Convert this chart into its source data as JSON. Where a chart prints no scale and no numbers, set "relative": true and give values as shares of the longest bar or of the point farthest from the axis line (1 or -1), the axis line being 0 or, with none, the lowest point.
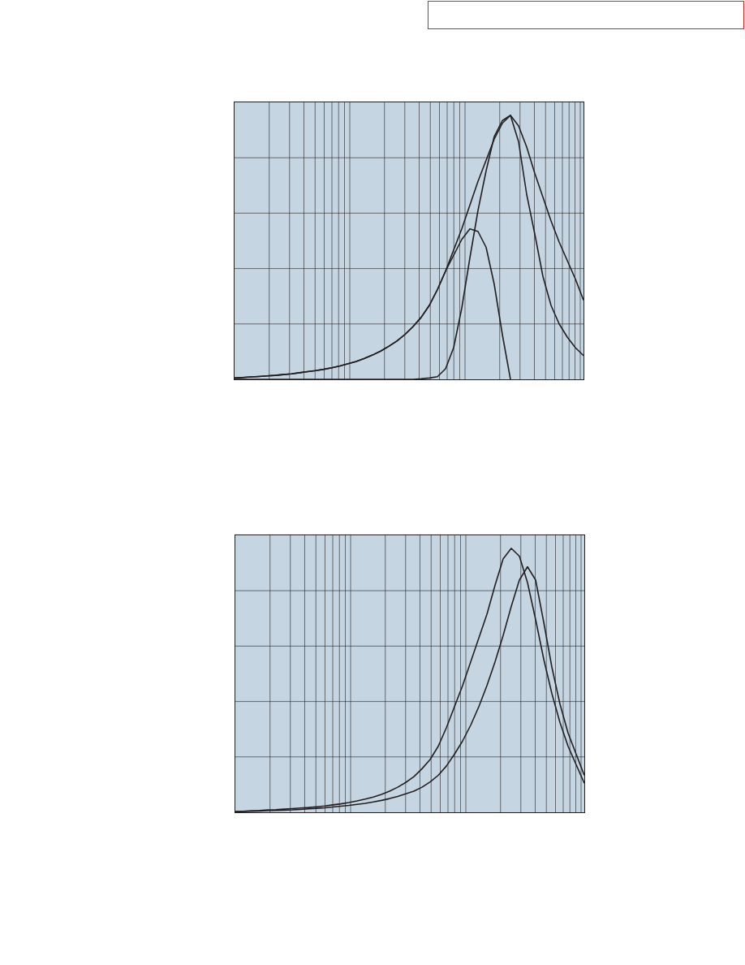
{
  "chart_data": [
    {
      "type": "line",
      "relative": true,
      "grid": true,
      "line_style": "solid",
      "marker": "none",
      "categories": [
        null,
        null,
        null,
        null,
        null,
        null,
        null,
        null,
        null,
        null,
        null,
        null,
        null,
        null,
        null,
        null,
        null,
        null,
        null,
        null,
        null,
        null,
        null,
        null,
        null,
        null,
        null,
        null,
        null,
        null,
        null,
        null,
        null,
        null,
        null,
        null,
        null,
        null,
        null,
        null,
        null,
        null,
        null,
        null
      ],
      "series": [
        {
          "color": "#231f20",
          "values": [
            0.005,
            0.007,
            0.009,
            0.011,
            0.013,
            0.015,
            0.018,
            0.021,
            0.025,
            0.029,
            0.033,
            0.038,
            0.044,
            0.051,
            0.059,
            0.068,
            0.079,
            0.092,
            0.107,
            0.125,
            0.145,
            0.17,
            0.2,
            0.235,
            0.28,
            0.34,
            0.41,
            0.49,
            0.57,
            0.66,
            0.75,
            0.83,
            0.91,
            0.97,
            1.0,
            0.96,
            0.88,
            0.78,
            0.69,
            0.6,
            0.52,
            0.45,
            0.38,
            0.3
          ]
        },
        {
          "color": "#231f20",
          "values": [
            0,
            0,
            0,
            0,
            0,
            0,
            0,
            0,
            0,
            0,
            0,
            0,
            0,
            0,
            0,
            0,
            0,
            0,
            0,
            0,
            0,
            0,
            0,
            0.002,
            0.005,
            0.01,
            0.04,
            0.12,
            0.27,
            0.46,
            0.64,
            0.79,
            0.92,
            0.98,
            1.0,
            0.9,
            0.7,
            0.55,
            0.39,
            0.28,
            0.21,
            0.16,
            0.12,
            0.09
          ]
        },
        {
          "color": "#231f20",
          "values": [
            0.005,
            0.007,
            0.009,
            0.011,
            0.013,
            0.015,
            0.018,
            0.021,
            0.025,
            0.029,
            0.033,
            0.038,
            0.044,
            0.051,
            0.059,
            0.068,
            0.079,
            0.092,
            0.107,
            0.125,
            0.145,
            0.17,
            0.2,
            0.235,
            0.28,
            0.34,
            0.41,
            0.47,
            0.53,
            0.57,
            0.56,
            0.5,
            0.36,
            0.17,
            0,
            null,
            null,
            null,
            null,
            null,
            null,
            null,
            null,
            null
          ]
        }
      ]
    },
    {
      "type": "line",
      "relative": true,
      "grid": true,
      "line_style": "solid",
      "marker": "none",
      "categories": [
        null,
        null,
        null,
        null,
        null,
        null,
        null,
        null,
        null,
        null,
        null,
        null,
        null,
        null,
        null,
        null,
        null,
        null,
        null,
        null,
        null,
        null,
        null,
        null,
        null,
        null,
        null,
        null,
        null,
        null,
        null,
        null,
        null,
        null,
        null,
        null,
        null,
        null,
        null,
        null,
        null,
        null,
        null,
        null
      ],
      "series": [
        {
          "color": "#231f20",
          "values": [
            0.003,
            0.004,
            0.006,
            0.007,
            0.009,
            0.01,
            0.012,
            0.014,
            0.016,
            0.018,
            0.021,
            0.024,
            0.028,
            0.032,
            0.037,
            0.043,
            0.05,
            0.058,
            0.068,
            0.08,
            0.095,
            0.113,
            0.135,
            0.165,
            0.2,
            0.25,
            0.32,
            0.4,
            0.48,
            0.57,
            0.66,
            0.75,
            0.86,
            0.96,
            1.0,
            0.97,
            0.87,
            0.73,
            0.58,
            0.45,
            0.34,
            0.25,
            0.18,
            0.11
          ]
        },
        {
          "color": "#231f20",
          "values": [
            0.002,
            0.003,
            0.004,
            0.005,
            0.006,
            0.007,
            0.008,
            0.009,
            0.011,
            0.013,
            0.015,
            0.017,
            0.02,
            0.023,
            0.026,
            0.03,
            0.034,
            0.039,
            0.045,
            0.052,
            0.06,
            0.07,
            0.08,
            0.095,
            0.115,
            0.14,
            0.175,
            0.22,
            0.27,
            0.33,
            0.4,
            0.48,
            0.57,
            0.67,
            0.78,
            0.88,
            0.93,
            0.88,
            0.72,
            0.55,
            0.41,
            0.3,
            0.22,
            0.14
          ]
        }
      ]
    }
  ]
}
